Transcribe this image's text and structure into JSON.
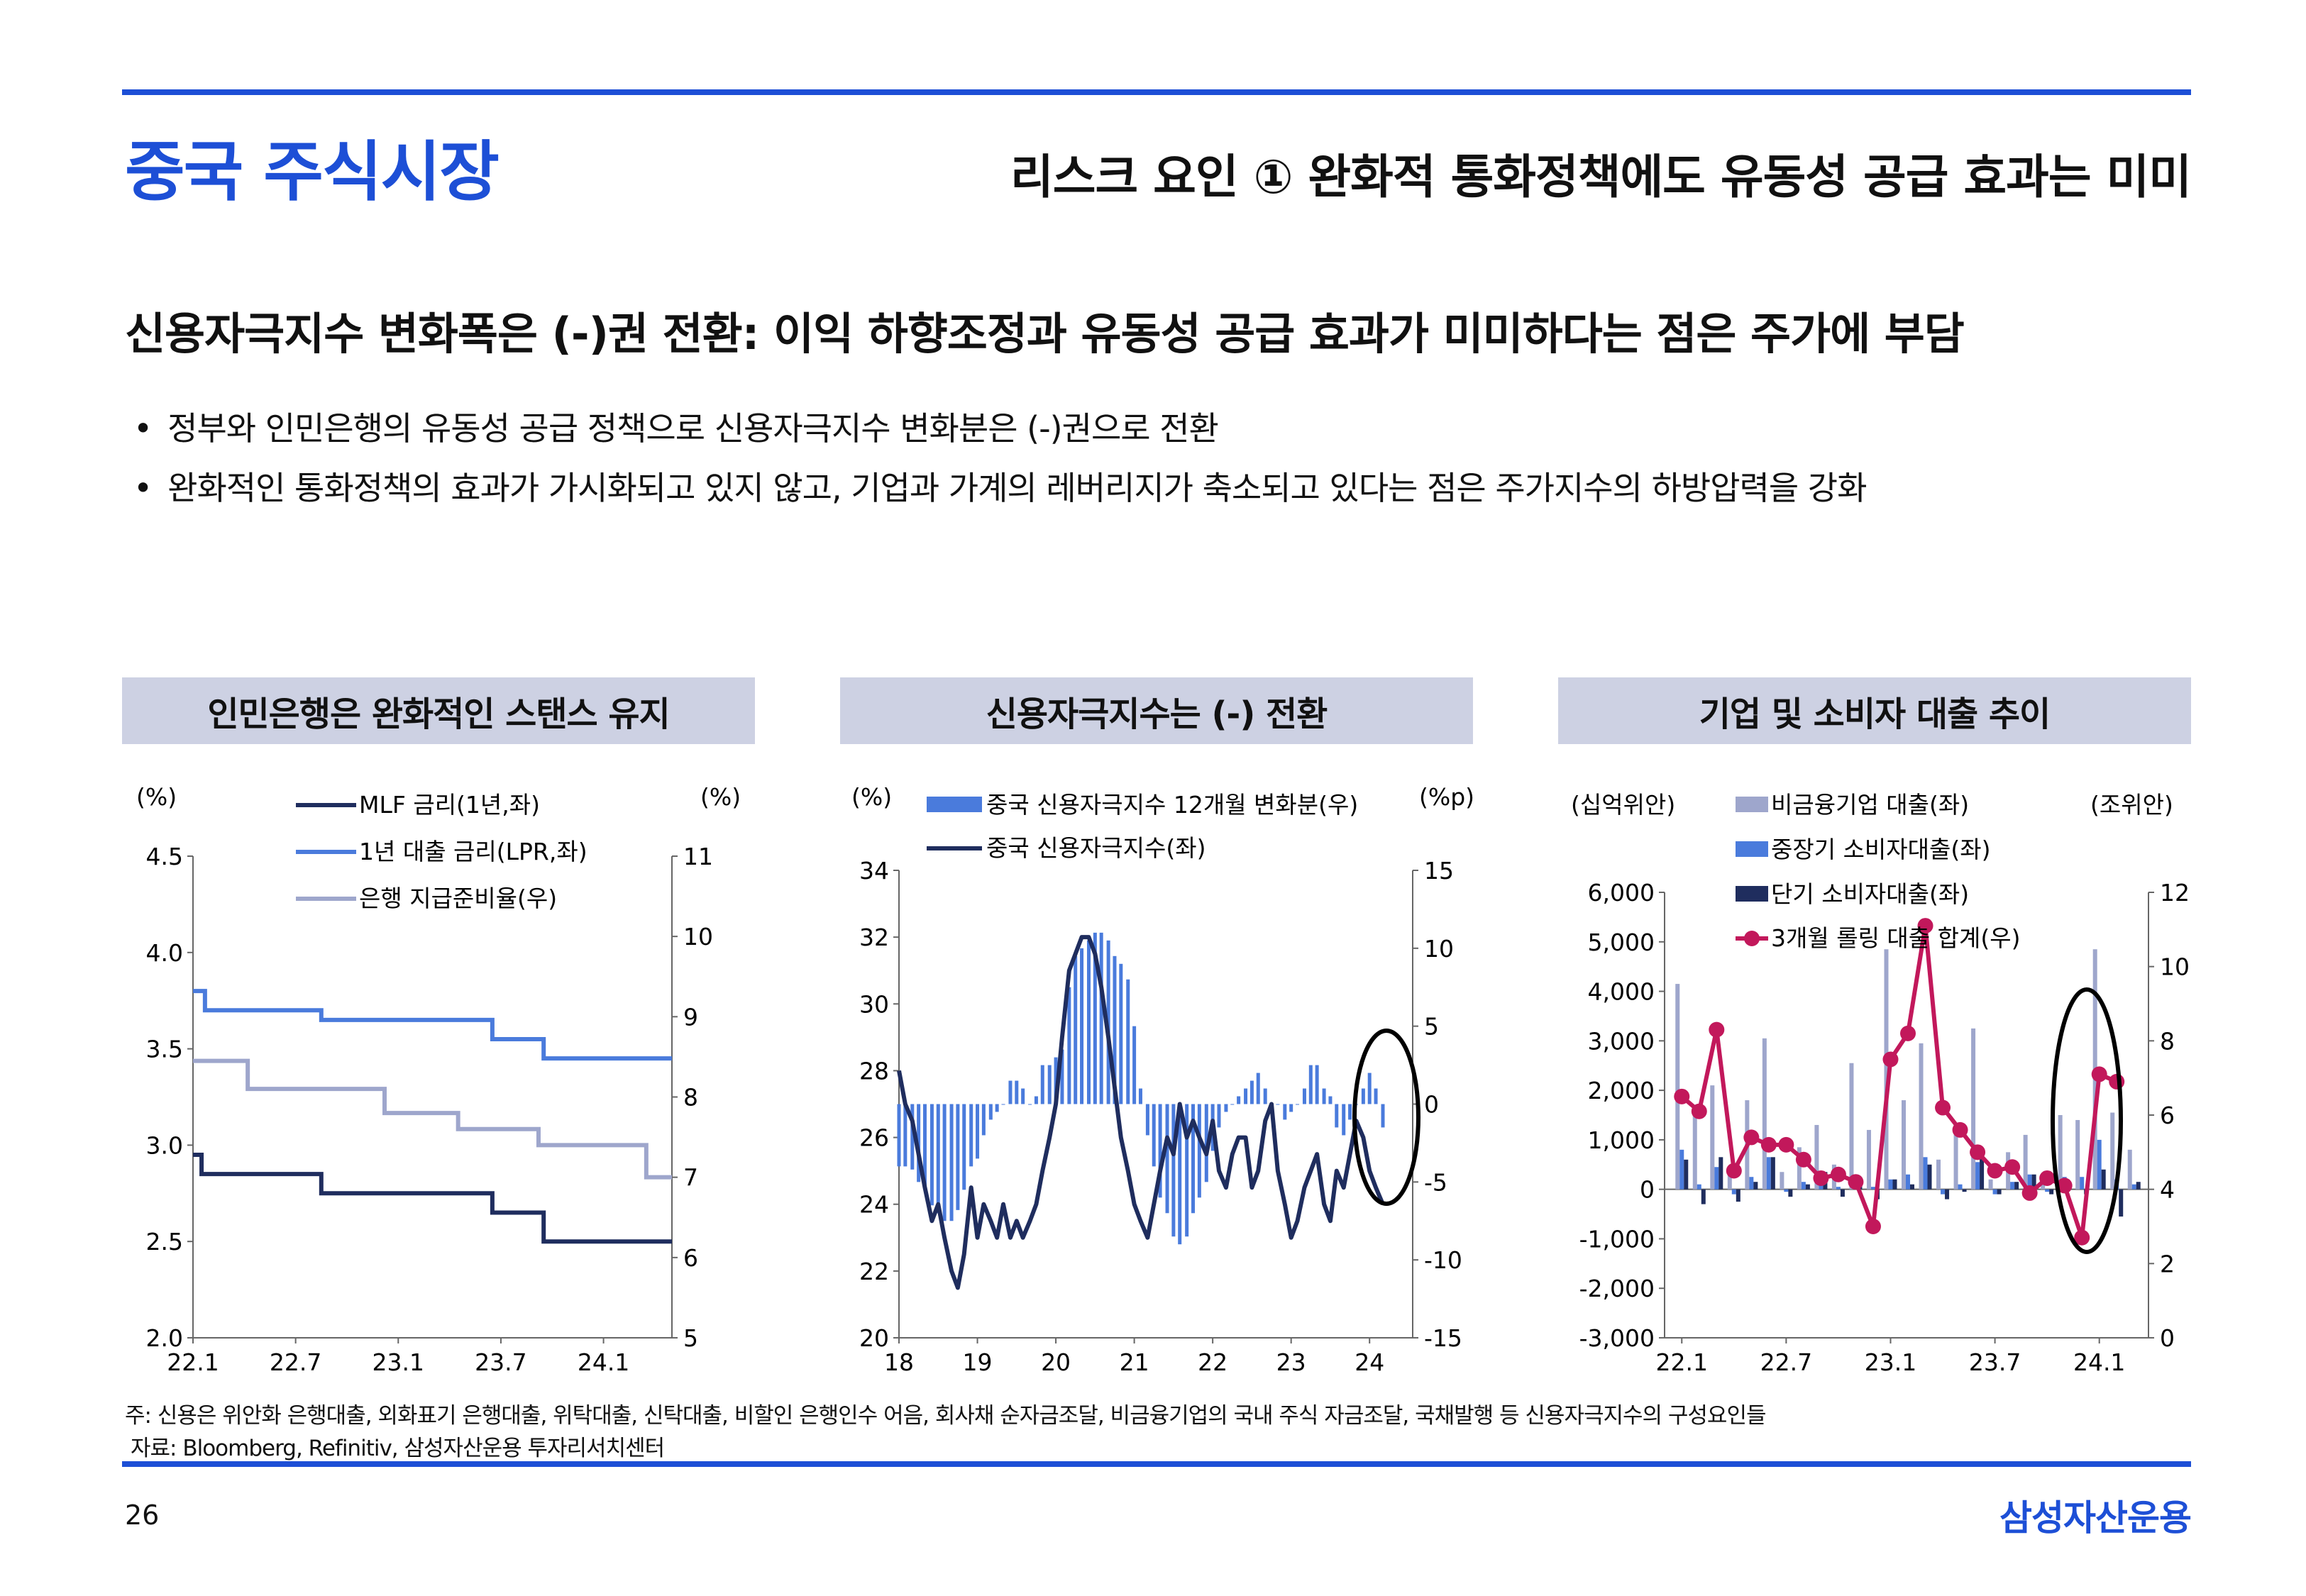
{
  "header": {
    "title": "중국 주식시장",
    "subtitle": "리스크 요인 ① 완화적 통화정책에도 유동성 공급 효과는 미미"
  },
  "headline": "신용자극지수 변화폭은 (-)권 전환: 이익 하향조정과 유동성 공급 효과가 미미하다는 점은 주가에 부담",
  "bullets": [
    "정부와 인민은행의 유동성 공급 정책으로 신용자극지수 변화분은 (-)권으로 전환",
    "완화적인 통화정책의 효과가 가시화되고 있지 않고, 기업과 가계의 레버리지가 축소되고 있다는 점은 주가지수의 하방압력을 강화"
  ],
  "panels": [
    {
      "title": "인민은행은 완화적인 스탠스 유지"
    },
    {
      "title": "신용자극지수는 (-) 전환"
    },
    {
      "title": "기업 및 소비자 대출 추이"
    }
  ],
  "footer": {
    "note": "주: 신용은 위안화 은행대출, 외화표기 은행대출, 위탁대출, 신탁대출, 비할인 은행인수 어음, 회사채 순자금조달, 비금융기업의 국내 주식 자금조달, 국채발행 등 신용자극지수의 구성요인들",
    "source": "자료: Bloomberg, Refinitiv, 삼성자산운용 투자리서치센터",
    "page_number": "26",
    "brand": "삼성자산운용"
  },
  "colors": {
    "accent": "#1d4fd6",
    "navy": "#1f2d5e",
    "mid_blue": "#4a7bdc",
    "gray_blue": "#9ea6cc",
    "crimson": "#c2185b"
  },
  "chart_data": [
    {
      "type": "line",
      "title": "인민은행은 완화적인 스탠스 유지",
      "left_unit": "(%)",
      "right_unit": "(%)",
      "ylim_left": [
        2.0,
        4.5
      ],
      "yticks_left": [
        "2.0",
        "2.5",
        "3.0",
        "3.5",
        "4.0",
        "4.5"
      ],
      "ylim_right": [
        5,
        11
      ],
      "yticks_right": [
        "5",
        "6",
        "7",
        "8",
        "9",
        "10",
        "11"
      ],
      "xlim": [
        0,
        28
      ],
      "xticks": [
        {
          "x": 0,
          "label": "22.1"
        },
        {
          "x": 6,
          "label": "22.7"
        },
        {
          "x": 12,
          "label": "23.1"
        },
        {
          "x": 18,
          "label": "23.7"
        },
        {
          "x": 24,
          "label": "24.1"
        }
      ],
      "series": [
        {
          "name": "MLF 금리(1년,좌)",
          "axis": "left",
          "step": true,
          "color": "#1f2d5e",
          "x": [
            0,
            0.5,
            7.5,
            13,
            17.5,
            18.5,
            20.5,
            28
          ],
          "y": [
            2.95,
            2.85,
            2.75,
            2.75,
            2.65,
            2.65,
            2.5,
            2.5
          ]
        },
        {
          "name": "1년 대출 금리(LPR,좌)",
          "axis": "left",
          "step": true,
          "color": "#4a7bdc",
          "x": [
            0,
            0.7,
            7.5,
            17.5,
            20.5,
            28
          ],
          "y": [
            3.8,
            3.7,
            3.65,
            3.55,
            3.45,
            3.45
          ]
        },
        {
          "name": "은행 지급준비율(우)",
          "axis": "right",
          "step": true,
          "color": "#9ea6cc",
          "x": [
            0,
            3.2,
            11.2,
            15.5,
            20.2,
            26.5,
            28
          ],
          "y": [
            8.45,
            8.1,
            7.8,
            7.6,
            7.4,
            7.0,
            7.0
          ]
        }
      ]
    },
    {
      "type": "bar+line",
      "title": "신용자극지수는 (-) 전환",
      "left_unit": "(%)",
      "right_unit": "(%p)",
      "ylim_left": [
        20,
        34
      ],
      "yticks_left": [
        "20",
        "22",
        "24",
        "26",
        "28",
        "30",
        "32",
        "34"
      ],
      "ylim_right": [
        -15,
        15
      ],
      "yticks_right": [
        "-15",
        "-10",
        "-5",
        "0",
        "5",
        "10",
        "15"
      ],
      "xlim": [
        2018,
        2024.55
      ],
      "xticks": [
        {
          "x": 2018,
          "label": "18"
        },
        {
          "x": 2019,
          "label": "19"
        },
        {
          "x": 2020,
          "label": "20"
        },
        {
          "x": 2021,
          "label": "21"
        },
        {
          "x": 2022,
          "label": "22"
        },
        {
          "x": 2023,
          "label": "23"
        },
        {
          "x": 2024,
          "label": "24"
        }
      ],
      "series": [
        {
          "name": "중국 신용자극지수 12개월 변화분(우)",
          "axis": "right",
          "kind": "bar",
          "color": "#4a7bdc",
          "x": [
            2018.0,
            2018.08,
            2018.17,
            2018.25,
            2018.33,
            2018.42,
            2018.5,
            2018.58,
            2018.67,
            2018.75,
            2018.83,
            2018.92,
            2019.0,
            2019.08,
            2019.17,
            2019.25,
            2019.33,
            2019.42,
            2019.5,
            2019.58,
            2019.67,
            2019.75,
            2019.83,
            2019.92,
            2020.0,
            2020.08,
            2020.17,
            2020.25,
            2020.33,
            2020.42,
            2020.5,
            2020.58,
            2020.67,
            2020.75,
            2020.83,
            2020.92,
            2021.0,
            2021.08,
            2021.17,
            2021.25,
            2021.33,
            2021.42,
            2021.5,
            2021.58,
            2021.67,
            2021.75,
            2021.83,
            2021.92,
            2022.0,
            2022.08,
            2022.17,
            2022.25,
            2022.33,
            2022.42,
            2022.5,
            2022.58,
            2022.67,
            2022.75,
            2022.83,
            2022.92,
            2023.0,
            2023.08,
            2023.17,
            2023.25,
            2023.33,
            2023.42,
            2023.5,
            2023.58,
            2023.67,
            2023.75,
            2023.83,
            2023.92,
            2024.0,
            2024.08,
            2024.17
          ],
          "y": [
            -4,
            -4,
            -4.2,
            -5,
            -5.5,
            -6.5,
            -7,
            -7.5,
            -7.5,
            -6.8,
            -5.5,
            -4,
            -3.5,
            -2,
            -1,
            -0.5,
            0,
            1.5,
            1.5,
            1,
            0,
            0.5,
            2.5,
            2.5,
            3,
            3.5,
            7.5,
            9.5,
            10,
            10.5,
            11,
            11,
            10.5,
            9.5,
            9,
            8,
            5,
            1,
            -2,
            -4,
            -6,
            -7,
            -8.5,
            -9,
            -8.5,
            -7,
            -6,
            -5,
            -3,
            -1.5,
            -0.5,
            0,
            0.5,
            1,
            1.5,
            2,
            1,
            0,
            0,
            -1,
            -0.5,
            0,
            1,
            2.5,
            2.5,
            1,
            0.5,
            -1.5,
            -2,
            -1,
            0,
            1,
            2,
            1,
            -1.5
          ]
        },
        {
          "name": "중국 신용자극지수(좌)",
          "axis": "left",
          "kind": "line",
          "color": "#1f2d5e",
          "x": [
            2018.0,
            2018.08,
            2018.17,
            2018.25,
            2018.33,
            2018.42,
            2018.5,
            2018.58,
            2018.67,
            2018.75,
            2018.83,
            2018.92,
            2019.0,
            2019.08,
            2019.17,
            2019.25,
            2019.33,
            2019.42,
            2019.5,
            2019.58,
            2019.67,
            2019.75,
            2019.83,
            2019.92,
            2020.0,
            2020.08,
            2020.17,
            2020.25,
            2020.33,
            2020.42,
            2020.5,
            2020.58,
            2020.67,
            2020.75,
            2020.83,
            2020.92,
            2021.0,
            2021.08,
            2021.17,
            2021.25,
            2021.33,
            2021.42,
            2021.5,
            2021.58,
            2021.67,
            2021.75,
            2021.83,
            2021.92,
            2022.0,
            2022.08,
            2022.17,
            2022.25,
            2022.33,
            2022.42,
            2022.5,
            2022.58,
            2022.67,
            2022.75,
            2022.83,
            2022.92,
            2023.0,
            2023.08,
            2023.17,
            2023.25,
            2023.33,
            2023.42,
            2023.5,
            2023.58,
            2023.67,
            2023.75,
            2023.83,
            2023.92,
            2024.0,
            2024.08,
            2024.17
          ],
          "y": [
            28,
            27,
            26.5,
            25.5,
            24.5,
            23.5,
            24,
            23,
            22,
            21.5,
            22.5,
            24.5,
            23,
            24,
            23.5,
            23,
            24,
            23,
            23.5,
            23,
            23.5,
            24,
            25,
            26,
            27,
            29,
            31,
            31.5,
            32,
            32,
            31.5,
            30.5,
            29,
            27.5,
            26,
            25,
            24,
            23.5,
            23,
            24,
            25,
            26,
            25.5,
            27,
            26,
            26.5,
            26,
            25.5,
            26.5,
            25,
            24.5,
            25.5,
            26,
            26,
            24.5,
            25,
            26.5,
            27,
            25,
            24,
            23,
            23.5,
            24.5,
            25,
            25.5,
            24,
            23.5,
            25,
            24.5,
            25.5,
            26.5,
            26,
            25,
            24.5,
            24
          ]
        }
      ]
    },
    {
      "type": "bar+line",
      "title": "기업 및 소비자 대출 추이",
      "left_unit": "(십억위안)",
      "right_unit": "(조위안)",
      "ylim_left": [
        -3000,
        6000
      ],
      "yticks_left": [
        "-3,000",
        "-2,000",
        "-1,000",
        "0",
        "1,000",
        "2,000",
        "3,000",
        "4,000",
        "5,000",
        "6,000"
      ],
      "ylim_right": [
        0,
        12
      ],
      "yticks_right": [
        "0",
        "2",
        "4",
        "6",
        "8",
        "10",
        "12"
      ],
      "xticks": [
        {
          "x": 0,
          "label": "22.1"
        },
        {
          "x": 6,
          "label": "22.7"
        },
        {
          "x": 12,
          "label": "23.1"
        },
        {
          "x": 18,
          "label": "23.7"
        },
        {
          "x": 24,
          "label": "24.1"
        }
      ],
      "categories": [
        "22.1",
        "22.2",
        "22.3",
        "22.4",
        "22.5",
        "22.6",
        "22.7",
        "22.8",
        "22.9",
        "22.10",
        "22.11",
        "22.12",
        "23.1",
        "23.2",
        "23.3",
        "23.4",
        "23.5",
        "23.6",
        "23.7",
        "23.8",
        "23.9",
        "23.10",
        "23.11",
        "23.12",
        "24.1",
        "24.2",
        "24.3"
      ],
      "series": [
        {
          "name": "비금융기업 대출(좌)",
          "axis": "left",
          "kind": "bar",
          "color": "#9ea6cc",
          "values": [
            4150,
            1500,
            2100,
            300,
            1800,
            3050,
            350,
            850,
            1300,
            500,
            2550,
            1200,
            4850,
            1800,
            2950,
            600,
            1100,
            3250,
            200,
            750,
            1100,
            300,
            1500,
            1400,
            4850,
            1550,
            800
          ]
        },
        {
          "name": "중장기 소비자대출(좌)",
          "axis": "left",
          "kind": "bar",
          "color": "#4a7bdc",
          "values": [
            800,
            100,
            450,
            -100,
            250,
            650,
            -50,
            150,
            300,
            50,
            250,
            50,
            200,
            300,
            650,
            -100,
            100,
            550,
            -100,
            150,
            300,
            -50,
            250,
            250,
            1000,
            200,
            100
          ]
        },
        {
          "name": "단기 소비자대출(좌)",
          "axis": "left",
          "kind": "bar",
          "color": "#1f2d5e",
          "values": [
            600,
            -300,
            650,
            -250,
            150,
            650,
            -150,
            100,
            350,
            -150,
            100,
            -200,
            200,
            100,
            500,
            -200,
            -50,
            700,
            -100,
            150,
            300,
            -100,
            50,
            -100,
            400,
            -550,
            150
          ]
        },
        {
          "name": "3개월 롤링 대출 합계(우)",
          "axis": "right",
          "kind": "line",
          "color": "#c2185b",
          "x": [
            0,
            1,
            2,
            3,
            4,
            5,
            6,
            7,
            8,
            9,
            10,
            11,
            12,
            13,
            14,
            15,
            16,
            17,
            18,
            19,
            20,
            21,
            22,
            23,
            24,
            25
          ],
          "values": [
            6.5,
            6.1,
            8.3,
            4.5,
            5.4,
            5.2,
            5.2,
            4.8,
            4.3,
            4.4,
            4.2,
            3.0,
            7.5,
            8.2,
            11.1,
            6.2,
            5.6,
            5.0,
            4.5,
            4.6,
            3.9,
            4.3,
            4.1,
            2.7,
            7.1,
            6.9
          ]
        }
      ]
    }
  ]
}
